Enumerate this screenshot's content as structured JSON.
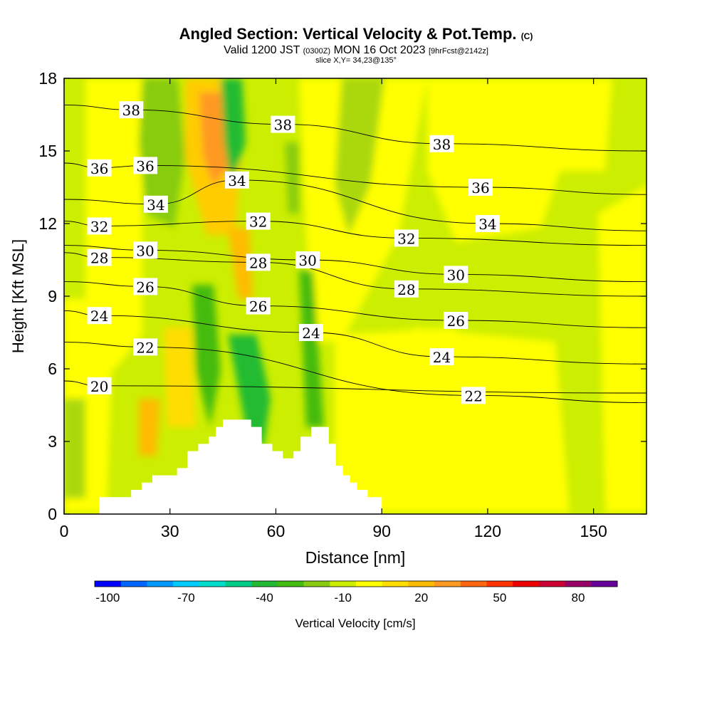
{
  "header": {
    "title_main": "Angled Section: Vertical Velocity & Pot.Temp.",
    "title_unit": "(C)",
    "valid_prefix": "Valid 1200 JST",
    "valid_utc": "(0300Z)",
    "valid_date": "MON 16 Oct 2023",
    "forecast": "[9hrFcst@2142z]",
    "slice": "slice X,Y= 34,23@135°"
  },
  "chart_data": {
    "type": "heatmap",
    "xlabel": "Distance [nm]",
    "ylabel": "Height [Kft MSL]",
    "xlim": [
      0,
      165
    ],
    "ylim": [
      0,
      18
    ],
    "x_ticks": [
      0,
      30,
      60,
      90,
      120,
      150
    ],
    "y_ticks": [
      0,
      3,
      6,
      9,
      12,
      15,
      18
    ],
    "colorbar": {
      "label": "Vertical Velocity [cm/s]",
      "min": -105,
      "max": 95,
      "step": 10,
      "tick_values": [
        -100,
        -70,
        -40,
        -10,
        20,
        50,
        80
      ],
      "colors": [
        "#0000ff",
        "#0066ff",
        "#0099ff",
        "#00ccff",
        "#00ddcc",
        "#00cc88",
        "#22bb33",
        "#44bb11",
        "#88cc11",
        "#ccee00",
        "#ffff00",
        "#ffdd00",
        "#ffbb00",
        "#ff9922",
        "#ff6611",
        "#ff3300",
        "#ee0000",
        "#cc0033",
        "#990066",
        "#660099"
      ]
    },
    "terrain": [
      [
        10,
        0.7
      ],
      [
        16,
        0.7
      ],
      [
        19,
        1.0
      ],
      [
        22,
        1.3
      ],
      [
        25,
        1.6
      ],
      [
        29,
        1.6
      ],
      [
        32,
        1.9
      ],
      [
        35,
        2.6
      ],
      [
        38,
        2.9
      ],
      [
        41,
        3.2
      ],
      [
        43,
        3.6
      ],
      [
        45,
        3.9
      ],
      [
        50,
        3.9
      ],
      [
        53,
        3.6
      ],
      [
        56,
        2.9
      ],
      [
        59,
        2.6
      ],
      [
        62,
        2.3
      ],
      [
        65,
        2.6
      ],
      [
        67,
        3.2
      ],
      [
        70,
        3.6
      ],
      [
        73,
        3.6
      ],
      [
        75,
        2.9
      ],
      [
        77,
        2.0
      ],
      [
        79,
        1.6
      ],
      [
        81,
        1.3
      ],
      [
        83,
        1.0
      ],
      [
        86,
        0.7
      ],
      [
        90,
        0.7
      ]
    ],
    "isentrope_labels": [
      {
        "text": "38",
        "x": 19,
        "y": 16.7
      },
      {
        "text": "38",
        "x": 62,
        "y": 16.1
      },
      {
        "text": "38",
        "x": 107,
        "y": 15.3
      },
      {
        "text": "36",
        "x": 10,
        "y": 14.3
      },
      {
        "text": "36",
        "x": 23,
        "y": 14.4
      },
      {
        "text": "34",
        "x": 49,
        "y": 13.8
      },
      {
        "text": "36",
        "x": 118,
        "y": 13.5
      },
      {
        "text": "34",
        "x": 26,
        "y": 12.8
      },
      {
        "text": "32",
        "x": 55,
        "y": 12.1
      },
      {
        "text": "34",
        "x": 120,
        "y": 12.0
      },
      {
        "text": "32",
        "x": 10,
        "y": 11.9
      },
      {
        "text": "32",
        "x": 97,
        "y": 11.4
      },
      {
        "text": "30",
        "x": 23,
        "y": 10.9
      },
      {
        "text": "28",
        "x": 10,
        "y": 10.6
      },
      {
        "text": "28",
        "x": 55,
        "y": 10.4
      },
      {
        "text": "30",
        "x": 69,
        "y": 10.5
      },
      {
        "text": "30",
        "x": 111,
        "y": 9.9
      },
      {
        "text": "26",
        "x": 23,
        "y": 9.4
      },
      {
        "text": "28",
        "x": 97,
        "y": 9.3
      },
      {
        "text": "26",
        "x": 55,
        "y": 8.6
      },
      {
        "text": "24",
        "x": 10,
        "y": 8.2
      },
      {
        "text": "26",
        "x": 111,
        "y": 8.0
      },
      {
        "text": "24",
        "x": 70,
        "y": 7.5
      },
      {
        "text": "22",
        "x": 23,
        "y": 6.9
      },
      {
        "text": "24",
        "x": 107,
        "y": 6.5
      },
      {
        "text": "20",
        "x": 10,
        "y": 5.3
      },
      {
        "text": "22",
        "x": 116,
        "y": 4.9
      }
    ]
  }
}
